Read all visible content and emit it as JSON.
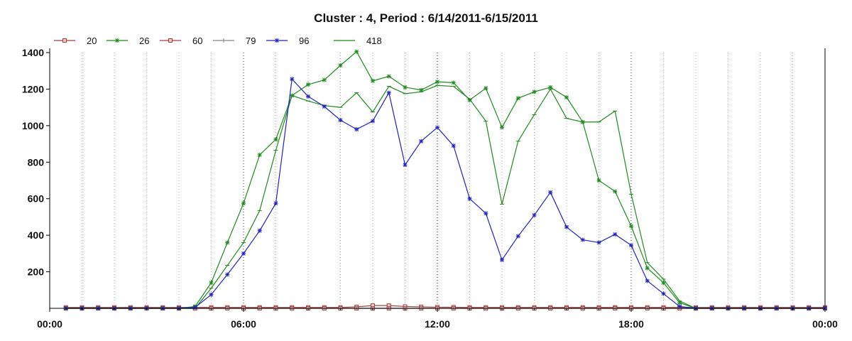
{
  "chart_data": {
    "type": "line",
    "title": "Cluster : 4, Period : 6/14/2011-6/15/2011",
    "xlabel": "",
    "ylabel": "",
    "ylim": [
      0,
      1400
    ],
    "xlim": [
      "00:00",
      "24:00"
    ],
    "x_tick_labels": [
      "00:00",
      "06:00",
      "12:00",
      "18:00",
      "00:00"
    ],
    "y_tick_labels": [
      "200",
      "400",
      "600",
      "800",
      "1000",
      "1200",
      "1400"
    ],
    "grid": {
      "vertical_minor": true,
      "vertical_major": true,
      "horizontal": false
    },
    "legend_position": "top-left",
    "x": [
      "00:30",
      "01:00",
      "01:30",
      "02:00",
      "02:30",
      "03:00",
      "03:30",
      "04:00",
      "04:30",
      "05:00",
      "05:30",
      "06:00",
      "06:30",
      "07:00",
      "07:30",
      "08:00",
      "08:30",
      "09:00",
      "09:30",
      "10:00",
      "10:30",
      "11:00",
      "11:30",
      "12:00",
      "12:30",
      "13:00",
      "13:30",
      "14:00",
      "14:30",
      "15:00",
      "15:30",
      "16:00",
      "16:30",
      "17:00",
      "17:30",
      "18:00",
      "18:30",
      "19:00",
      "19:30",
      "20:00",
      "20:30",
      "21:00",
      "21:30",
      "22:00",
      "22:30",
      "23:00",
      "23:30",
      "24:00"
    ],
    "series": [
      {
        "name": "20",
        "color": "#a0403f",
        "marker": "square",
        "values": [
          5,
          5,
          5,
          5,
          5,
          5,
          5,
          5,
          5,
          5,
          5,
          5,
          5,
          5,
          5,
          5,
          5,
          5,
          8,
          15,
          15,
          10,
          8,
          6,
          6,
          5,
          5,
          5,
          5,
          5,
          5,
          5,
          5,
          5,
          5,
          5,
          5,
          5,
          5,
          5,
          5,
          5,
          5,
          5,
          5,
          5,
          5,
          5
        ]
      },
      {
        "name": "26",
        "color": "#1f8a1f",
        "marker": "star",
        "values": [
          0,
          0,
          0,
          0,
          0,
          0,
          0,
          0,
          10,
          140,
          360,
          575,
          840,
          925,
          1165,
          1225,
          1250,
          1330,
          1405,
          1245,
          1270,
          1210,
          1195,
          1240,
          1235,
          1140,
          1205,
          990,
          1150,
          1185,
          1210,
          1155,
          1020,
          700,
          640,
          450,
          220,
          140,
          30,
          0,
          0,
          0,
          0,
          0,
          0,
          0,
          0,
          0
        ]
      },
      {
        "name": "60",
        "color": "#a0403f",
        "marker": "square",
        "values": [
          0,
          0,
          0,
          0,
          0,
          0,
          0,
          0,
          0,
          0,
          0,
          0,
          0,
          0,
          0,
          0,
          0,
          0,
          0,
          0,
          0,
          0,
          0,
          0,
          0,
          0,
          0,
          0,
          0,
          0,
          0,
          0,
          0,
          0,
          0,
          0,
          0,
          0,
          0,
          0,
          0,
          0,
          0,
          0,
          0,
          0,
          0,
          0
        ]
      },
      {
        "name": "79",
        "color": "#888888",
        "marker": "plus",
        "values": [
          0,
          0,
          0,
          0,
          0,
          0,
          0,
          0,
          0,
          0,
          0,
          0,
          0,
          0,
          0,
          0,
          0,
          0,
          0,
          0,
          0,
          0,
          0,
          0,
          0,
          0,
          0,
          0,
          0,
          0,
          0,
          0,
          0,
          0,
          0,
          0,
          0,
          0,
          0,
          0,
          0,
          0,
          0,
          0,
          0,
          0,
          0,
          0
        ]
      },
      {
        "name": "96",
        "color": "#1f22c8",
        "marker": "star",
        "values": [
          0,
          0,
          0,
          0,
          0,
          0,
          0,
          0,
          5,
          75,
          185,
          300,
          425,
          575,
          1255,
          1160,
          1105,
          1030,
          980,
          1025,
          1180,
          785,
          915,
          990,
          890,
          600,
          520,
          265,
          395,
          510,
          635,
          445,
          375,
          360,
          405,
          345,
          150,
          80,
          10,
          0,
          0,
          0,
          0,
          0,
          0,
          0,
          0,
          0
        ]
      },
      {
        "name": "418",
        "color": "#1f8a1f",
        "marker": "tick",
        "values": [
          0,
          0,
          0,
          0,
          0,
          0,
          0,
          0,
          0,
          110,
          235,
          360,
          535,
          865,
          1165,
          1135,
          1110,
          1100,
          1180,
          1075,
          1215,
          1175,
          1185,
          1220,
          1215,
          1145,
          1025,
          570,
          915,
          1060,
          1200,
          1040,
          1020,
          1020,
          1080,
          625,
          250,
          160,
          40,
          0,
          0,
          0,
          0,
          0,
          0,
          0,
          0,
          0
        ]
      }
    ]
  }
}
